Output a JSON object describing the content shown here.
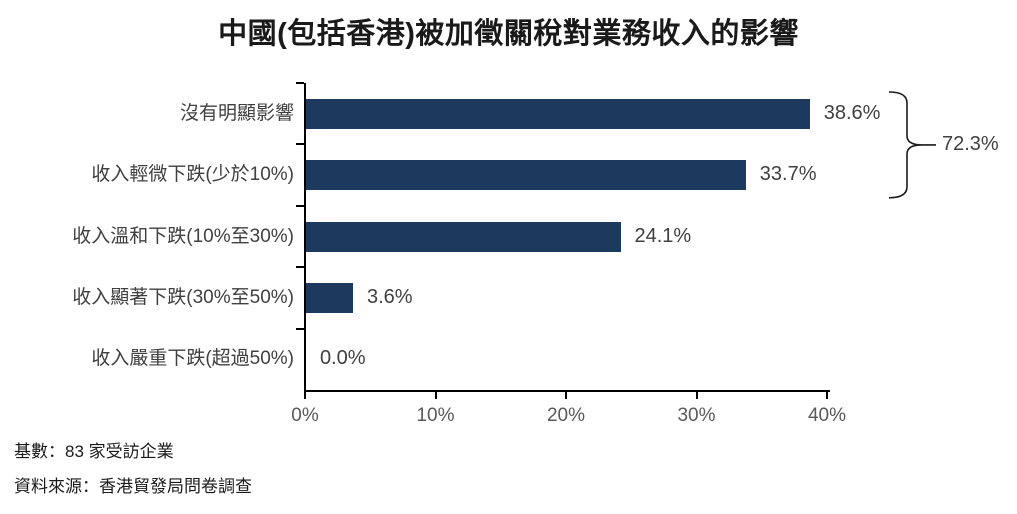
{
  "chart_data": {
    "type": "bar",
    "orientation": "horizontal",
    "title": "中國(包括香港)被加徵關稅對業務收入的影響",
    "categories": [
      "沒有明顯影響",
      "收入輕微下跌(少於10%)",
      "收入溫和下跌(10%至30%)",
      "收入顯著下跌(30%至50%)",
      "收入嚴重下跌(超過50%)"
    ],
    "values": [
      38.6,
      33.7,
      24.1,
      3.6,
      0.0
    ],
    "value_labels": [
      "38.6%",
      "33.7%",
      "24.1%",
      "3.6%",
      "0.0%"
    ],
    "xlim": [
      0,
      40
    ],
    "xticks": [
      "0%",
      "10%",
      "20%",
      "30%",
      "40%"
    ],
    "grid": false,
    "legend": "none",
    "annotation": {
      "label": "72.3%",
      "spans_categories": [
        0,
        1
      ]
    },
    "bar_color": "#1B3A5E"
  },
  "colors": {
    "bar": "#1B3A5E",
    "title": "#1a1a1a",
    "label": "#404040",
    "tick": "#595959",
    "axis": "#000000"
  },
  "footer": {
    "base": "基數：83 家受訪企業",
    "source": "資料來源：香港貿發局問卷調查"
  }
}
